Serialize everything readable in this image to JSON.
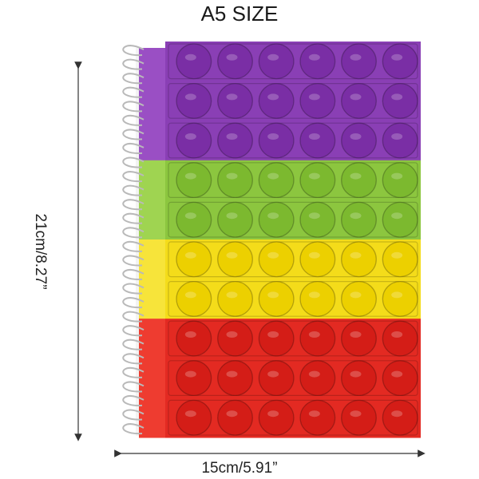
{
  "title": "A5 SIZE",
  "height_label": "21cm/8.27”",
  "width_label": "15cm/5.91”",
  "product": {
    "grid": {
      "columns": 6,
      "rows": 10
    },
    "color_bands": [
      {
        "color": "purple",
        "rows": 3,
        "fill": "#8a3fb5",
        "bubble": "#7a2ea5",
        "spine": "#9a4fc4"
      },
      {
        "color": "green",
        "rows": 2,
        "fill": "#8cc63f",
        "bubble": "#7cb92f",
        "spine": "#9fd451"
      },
      {
        "color": "yellow",
        "rows": 2,
        "fill": "#f4dc1a",
        "bubble": "#ecd000",
        "spine": "#f7e43a"
      },
      {
        "color": "red",
        "rows": 3,
        "fill": "#e32a22",
        "bubble": "#d41d17",
        "spine": "#ee3c30"
      }
    ],
    "spiral_coils": 28
  }
}
